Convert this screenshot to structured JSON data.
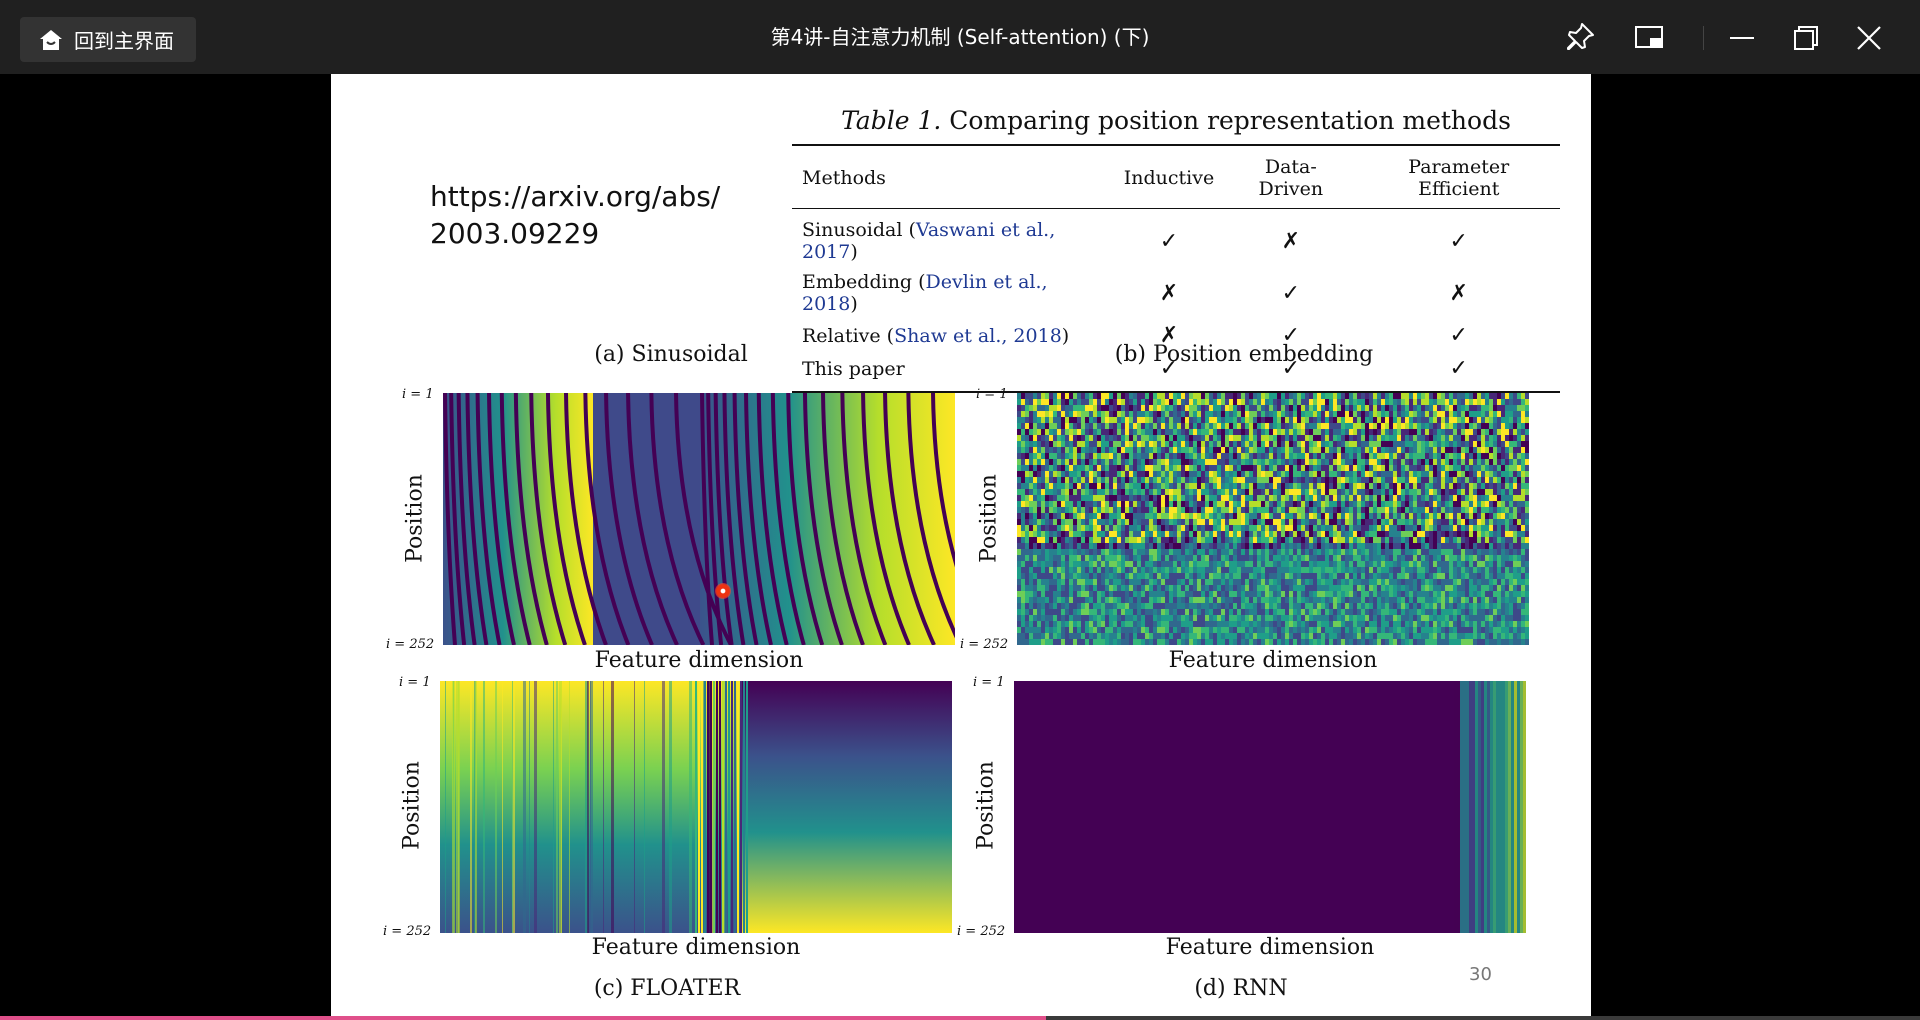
{
  "window": {
    "home_label": "回到主界面",
    "title": "第4讲-自注意力机制 (Self-attention) (下)"
  },
  "icons": {
    "home": "home-icon",
    "pin": "pin-icon",
    "pip": "picture-in-picture-icon",
    "minimize": "minimize-icon",
    "restore": "restore-icon",
    "close": "close-icon"
  },
  "slide": {
    "url_line1": "https://arxiv.org/abs/",
    "url_line2": "2003.09229",
    "page_number": "30",
    "table": {
      "caption_label": "Table 1.",
      "caption_text": "Comparing position representation methods",
      "headers": [
        "Methods",
        "Inductive",
        "Data-Driven",
        "Parameter Efficient"
      ],
      "rows": [
        {
          "method": "Sinusoidal (",
          "cite": "Vaswani et al., 2017",
          "close": ")",
          "inductive": "✓",
          "data_driven": "✗",
          "param_eff": "✓"
        },
        {
          "method": "Embedding (",
          "cite": "Devlin et al., 2018",
          "close": ")",
          "inductive": "✗",
          "data_driven": "✓",
          "param_eff": "✗"
        },
        {
          "method": "Relative (",
          "cite": "Shaw et al., 2018",
          "close": ")",
          "inductive": "✗",
          "data_driven": "✓",
          "param_eff": "✓"
        },
        {
          "method": "This paper",
          "cite": "",
          "close": "",
          "inductive": "✓",
          "data_driven": "✓",
          "param_eff": "✓"
        }
      ]
    },
    "figures": [
      {
        "title": "(a) Sinusoidal",
        "ylabel": "Position",
        "xlabel": "Feature dimension",
        "itop": "i = 1",
        "ibottom": "i = 252"
      },
      {
        "title": "(b) Position embedding",
        "ylabel": "Position",
        "xlabel": "Feature dimension",
        "itop": "i = 1",
        "ibottom": "i = 252"
      },
      {
        "title": "(c) FLOATER",
        "ylabel": "Position",
        "xlabel": "Feature dimension",
        "itop": "i = 1",
        "ibottom": "i = 252"
      },
      {
        "title": "(d) RNN",
        "ylabel": "Position",
        "xlabel": "Feature dimension",
        "itop": "i = 1",
        "ibottom": "i = 252"
      }
    ]
  },
  "playback": {
    "progress_fraction": 0.545
  },
  "colors": {
    "viridis_dark": "#440154",
    "viridis_mid": "#21918c",
    "viridis_light": "#fde725",
    "progress": "#e0508a"
  }
}
